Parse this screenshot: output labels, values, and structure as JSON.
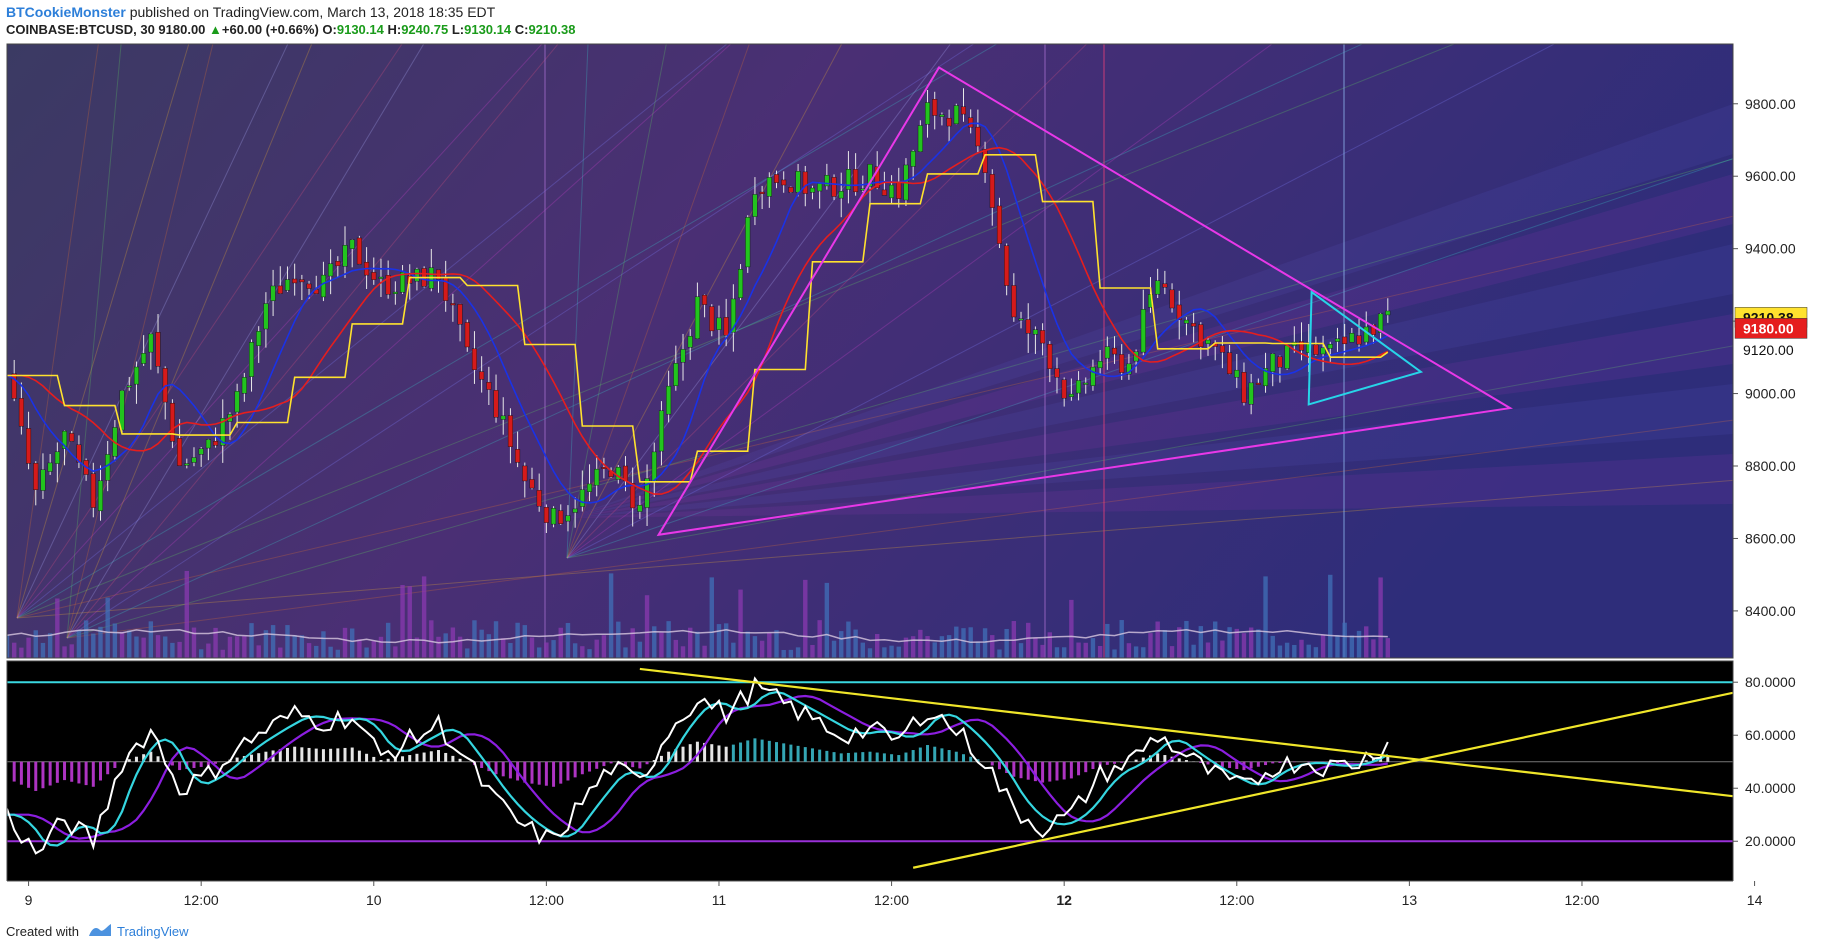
{
  "header": {
    "author": "BTCookieMonster",
    "published_text": "published on TradingView.com, March 13, 2018 18:35 EDT",
    "symbol": "COINBASE:BTCUSD, 30",
    "last": "9180.00",
    "change": "+60.00 (+0.66%)",
    "open_label": "O:",
    "open": "9130.14",
    "high_label": "H:",
    "high": "9240.75",
    "low_label": "L:",
    "low": "9130.14",
    "close_label": "C:",
    "close": "9210.38"
  },
  "footer": {
    "created_with": "Created with",
    "brand": "TradingView"
  },
  "colors": {
    "price_bg": "#2e2d7a",
    "osc_bg": "#000000",
    "up_candle": "#22c41e",
    "down_candle": "#d61a1a",
    "triangle_large": "#e838e8",
    "triangle_small": "#27d4e8",
    "ma_red": "#e51e1e",
    "ma_blue": "#1a32e6",
    "ma_yellow": "#ffe22e",
    "osc_trend": "#f0e62a",
    "osc_cyan": "#35d6e0",
    "osc_purple": "#8c1ee0"
  },
  "chart_data": [
    {
      "type": "candlestick",
      "symbol": "COINBASE:BTCUSD",
      "interval": "30",
      "x_tick_labels": [
        "9",
        "12:00",
        "10",
        "12:00",
        "11",
        "12:00",
        "12",
        "12:00",
        "13",
        "12:00",
        "14",
        "12:00"
      ],
      "y_tick_labels": [
        "8400.00",
        "8600.00",
        "8800.00",
        "9000.00",
        "9200.00",
        "9400.00",
        "9600.00",
        "9800.00"
      ],
      "ylim": [
        8270,
        9965
      ],
      "price_tags": [
        {
          "label": "9210.38",
          "value": 9210.38,
          "color": "#ffe22e"
        },
        {
          "label": "9180.00",
          "value": 9180.0,
          "color": "#e51e1e"
        },
        {
          "label": "9120.00",
          "value": 9120.0,
          "color": "#ffffff"
        }
      ],
      "close_path": [
        [
          0,
          9050
        ],
        [
          2,
          8720
        ],
        [
          4,
          8880
        ],
        [
          6,
          8700
        ],
        [
          8,
          9000
        ],
        [
          10,
          9150
        ],
        [
          12,
          8800
        ],
        [
          14,
          8850
        ],
        [
          16,
          8980
        ],
        [
          18,
          9250
        ],
        [
          20,
          9340
        ],
        [
          22,
          9300
        ],
        [
          24,
          9400
        ],
        [
          26,
          9300
        ],
        [
          28,
          9310
        ],
        [
          30,
          9330
        ],
        [
          32,
          9100
        ],
        [
          34,
          8960
        ],
        [
          36,
          8760
        ],
        [
          38,
          8650
        ],
        [
          40,
          8720
        ],
        [
          42,
          8800
        ],
        [
          44,
          8680
        ],
        [
          46,
          9000
        ],
        [
          48,
          9250
        ],
        [
          50,
          9150
        ],
        [
          52,
          9580
        ],
        [
          54,
          9600
        ],
        [
          56,
          9560
        ],
        [
          58,
          9580
        ],
        [
          60,
          9600
        ],
        [
          62,
          9560
        ],
        [
          64,
          9780
        ],
        [
          66,
          9770
        ],
        [
          68,
          9640
        ],
        [
          70,
          9200
        ],
        [
          72,
          9140
        ],
        [
          74,
          8970
        ],
        [
          76,
          9100
        ],
        [
          78,
          9080
        ],
        [
          80,
          9320
        ],
        [
          82,
          9200
        ],
        [
          84,
          9120
        ],
        [
          86,
          9000
        ],
        [
          88,
          9080
        ],
        [
          90,
          9120
        ],
        [
          92,
          9110
        ],
        [
          94,
          9160
        ],
        [
          96,
          9210
        ]
      ],
      "annotations": {
        "large_triangle": [
          [
            45.3,
            8610
          ],
          [
            64.8,
            9900
          ],
          [
            104.5,
            8960
          ]
        ],
        "small_triangle": [
          [
            90.5,
            8970
          ],
          [
            90.7,
            9280
          ],
          [
            98.3,
            9060
          ]
        ]
      }
    },
    {
      "type": "line",
      "name": "oscillator",
      "y_tick_labels": [
        "20.0000",
        "40.0000",
        "60.0000",
        "80.0000"
      ],
      "ylim": [
        5,
        88
      ],
      "levels": [
        20,
        80
      ],
      "zero_line": 50,
      "series": [
        {
          "values": [
            [
              0,
              30
            ],
            [
              2,
              15
            ],
            [
              4,
              28
            ],
            [
              6,
              20
            ],
            [
              8,
              50
            ],
            [
              10,
              62
            ],
            [
              12,
              40
            ],
            [
              14,
              45
            ],
            [
              16,
              55
            ],
            [
              18,
              62
            ],
            [
              20,
              68
            ],
            [
              22,
              65
            ],
            [
              24,
              67
            ],
            [
              26,
              52
            ],
            [
              28,
              58
            ],
            [
              30,
              64
            ],
            [
              32,
              50
            ],
            [
              34,
              35
            ],
            [
              36,
              25
            ],
            [
              38,
              20
            ],
            [
              40,
              35
            ],
            [
              42,
              48
            ],
            [
              44,
              42
            ],
            [
              46,
              62
            ],
            [
              48,
              74
            ],
            [
              50,
              68
            ],
            [
              52,
              78
            ],
            [
              54,
              72
            ],
            [
              56,
              66
            ],
            [
              58,
              60
            ],
            [
              60,
              62
            ],
            [
              62,
              58
            ],
            [
              64,
              70
            ],
            [
              66,
              62
            ],
            [
              68,
              50
            ],
            [
              70,
              32
            ],
            [
              72,
              25
            ],
            [
              74,
              30
            ],
            [
              76,
              45
            ],
            [
              78,
              50
            ],
            [
              80,
              60
            ],
            [
              82,
              52
            ],
            [
              84,
              45
            ],
            [
              86,
              40
            ],
            [
              88,
              48
            ],
            [
              90,
              50
            ],
            [
              92,
              48
            ],
            [
              94,
              50
            ],
            [
              96,
              57
            ]
          ]
        }
      ]
    }
  ]
}
